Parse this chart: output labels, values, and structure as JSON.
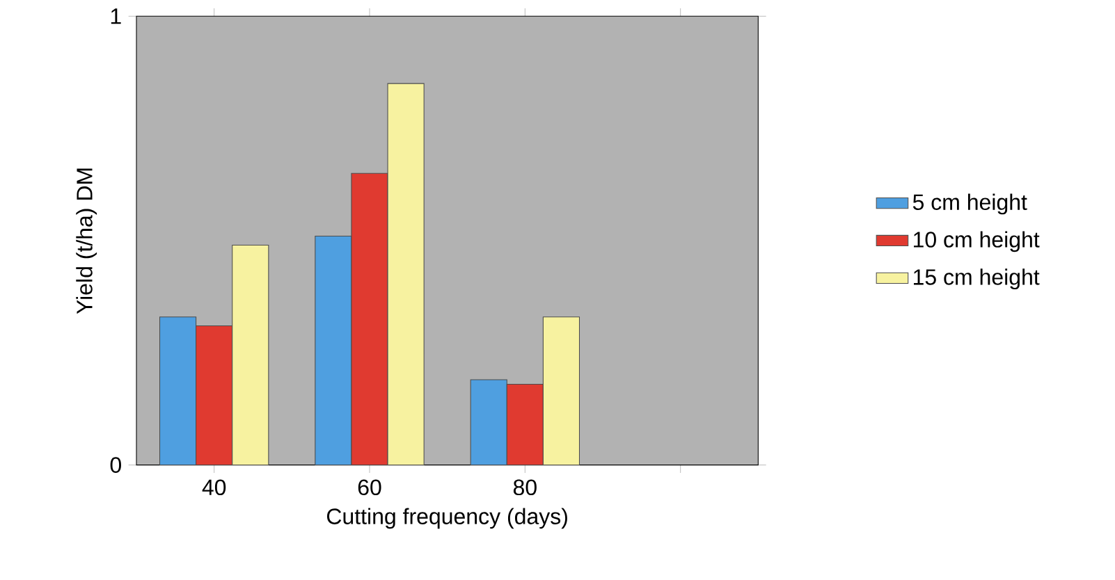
{
  "chart_data": {
    "type": "bar",
    "xlabel": "Cutting frequency (days)",
    "ylabel": "Yield (t/ha) DM",
    "categories": [
      "40",
      "60",
      "80",
      null
    ],
    "series": [
      {
        "name": "5 cm height",
        "color": "#4f9fe0",
        "values": [
          0.33,
          0.51,
          0.19,
          null
        ]
      },
      {
        "name": "10 cm height",
        "color": "#e03a30",
        "values": [
          0.31,
          0.65,
          0.18,
          null
        ]
      },
      {
        "name": "15 cm height",
        "color": "#f7f2a0",
        "values": [
          0.49,
          0.85,
          0.33,
          null
        ]
      }
    ],
    "ylim": [
      0,
      1
    ],
    "yticks": [
      0,
      1
    ],
    "grid": false,
    "legend": "right"
  }
}
